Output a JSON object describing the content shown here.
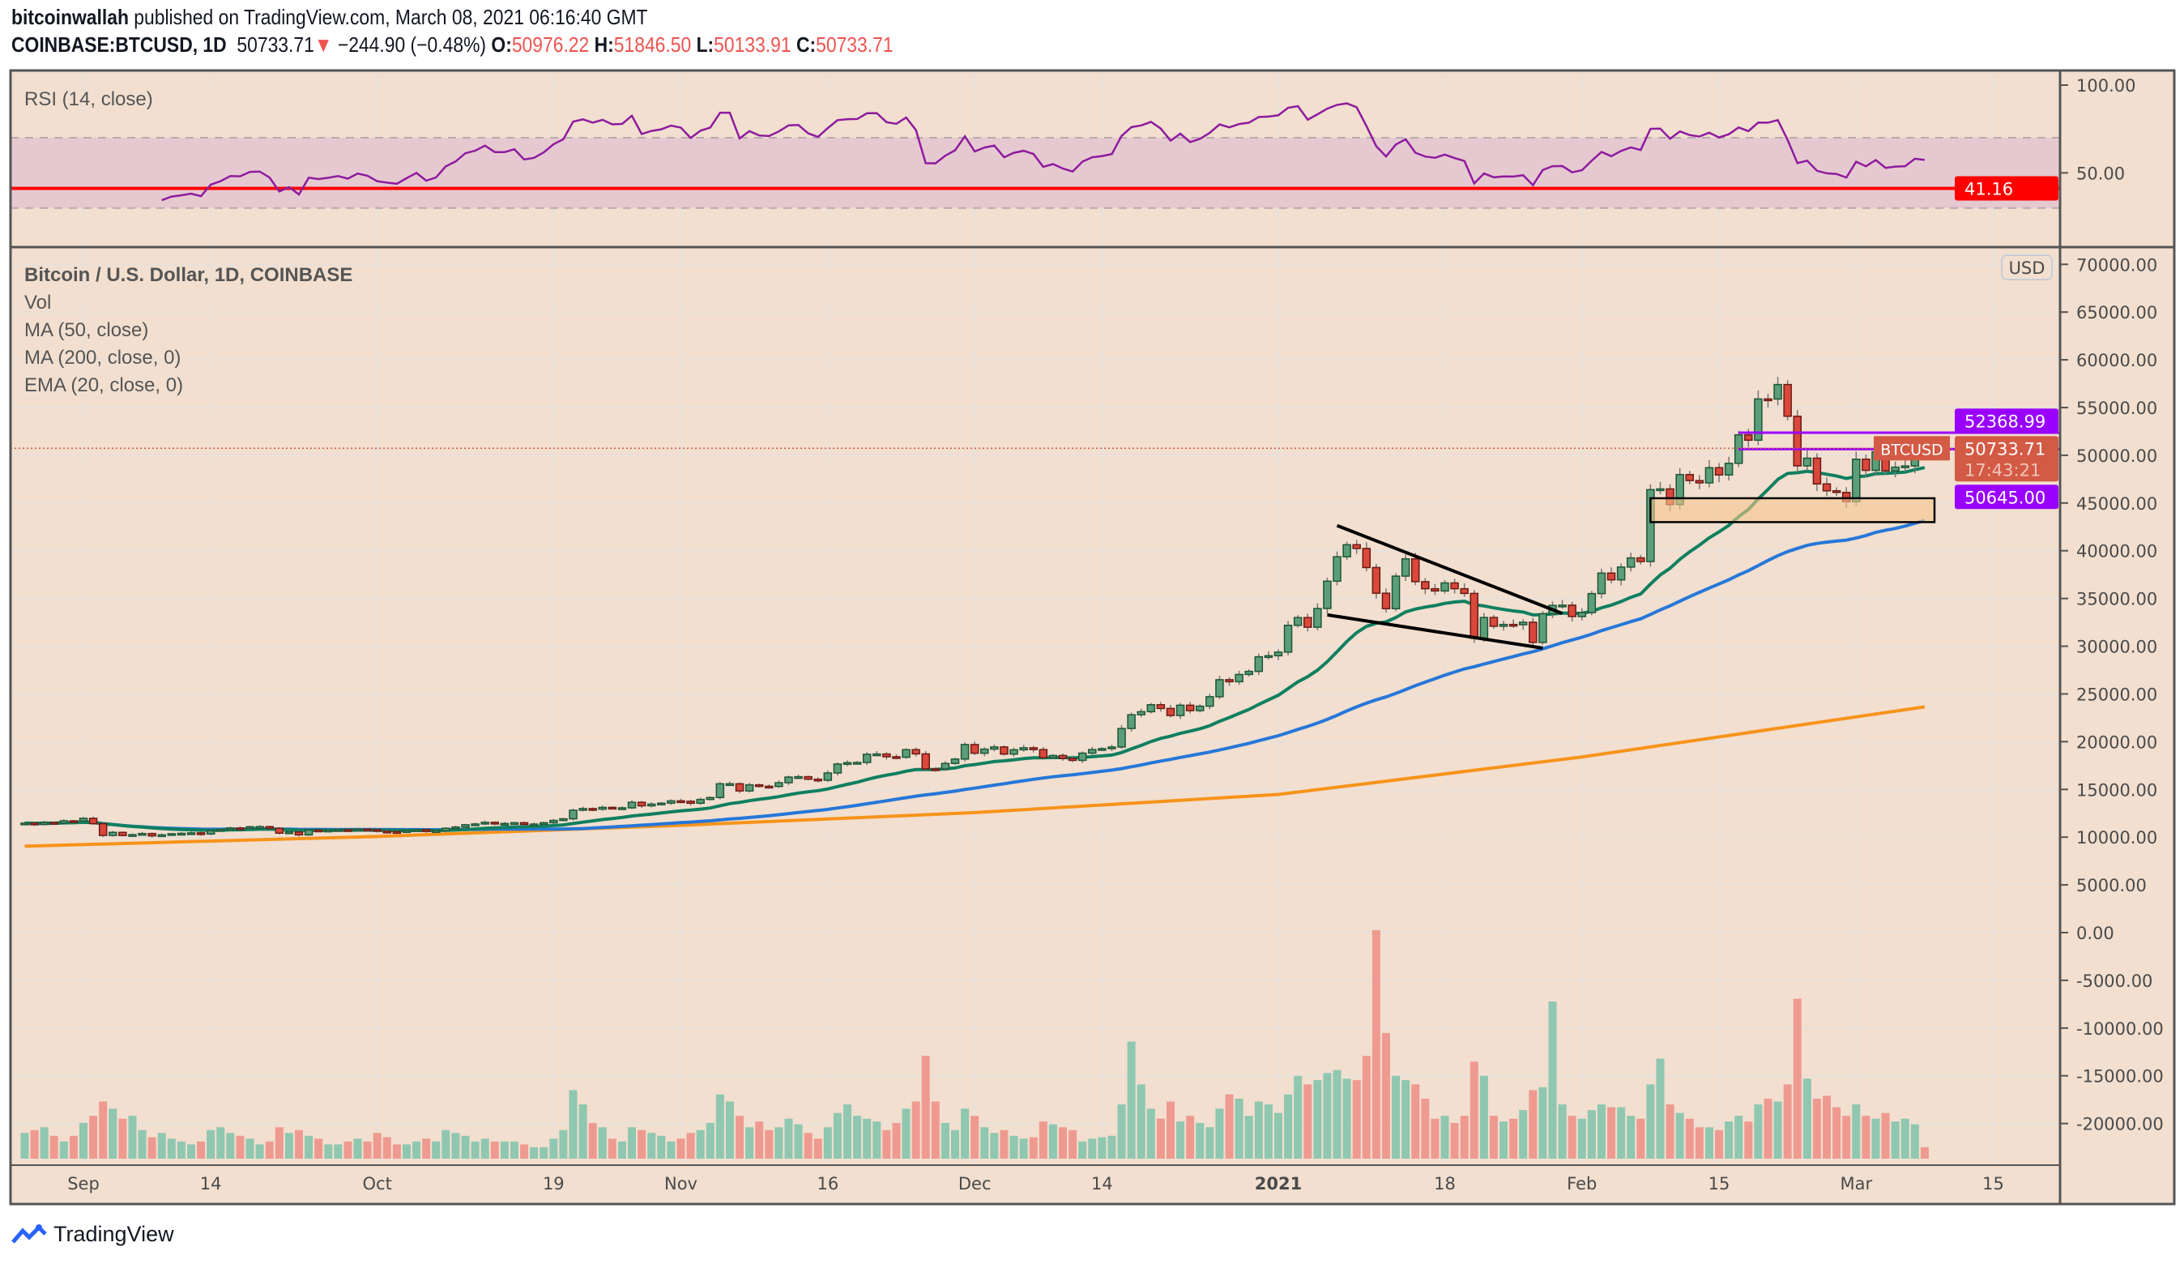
{
  "header": {
    "author": "bitcoinwallah",
    "published_text": "published on TradingView.com, March 08, 2021 06:16:40 GMT",
    "symbol": "COINBASE:BTCUSD, 1D",
    "last": "50733.71",
    "change": "−244.90 (−0.48%)",
    "o_label": "O:",
    "o": "50976.22",
    "h_label": "H:",
    "h": "51846.50",
    "l_label": "L:",
    "l": "50133.91",
    "c_label": "C:",
    "c": "50733.71",
    "direction_icon": "triangle-down-icon"
  },
  "footer": {
    "brand": "TradingView",
    "logo_icon": "tradingview-logo-icon"
  },
  "colors": {
    "background": "#f2dfcf",
    "up": "#5c9e7a",
    "down": "#d9483b",
    "vol_up": "#8fc7b0",
    "vol_down": "#ef9a90",
    "ema20": "#0f7f5f",
    "ma50": "#2677d9",
    "ma200": "#f7931a",
    "rsi": "#8e1b9f",
    "rsi_level": "#ff0000",
    "levels": "#9900ff",
    "last_price": "#d35a45"
  },
  "chart_data": [
    {
      "type": "line",
      "pane": "RSI",
      "title": "RSI (14, close)",
      "ylim": [
        0,
        100
      ],
      "yticks": [
        "100.00",
        "50.00"
      ],
      "band": [
        30,
        70
      ],
      "horizontal_level": {
        "value": 41.16,
        "label": "41.16"
      },
      "source": "computed from price closes"
    },
    {
      "type": "candlestick",
      "pane": "price",
      "title": "Bitcoin / U.S. Dollar, 1D, COINBASE",
      "legend": [
        "Vol",
        "MA (50, close)",
        "MA (200, close, 0)",
        "EMA (20, close, 0)"
      ],
      "currency_badge": "USD",
      "symbol_tag": "BTCUSD",
      "last_price_label": "50733.71",
      "countdown": "17:43:21",
      "yticks": [
        "70000.00",
        "65000.00",
        "60000.00",
        "55000.00",
        "50000.00",
        "45000.00",
        "40000.00",
        "35000.00",
        "30000.00",
        "25000.00",
        "20000.00",
        "15000.00",
        "10000.00",
        "5000.00",
        "0.00",
        "-5000.00",
        "-10000.00",
        "-15000.00",
        "-20000.00"
      ],
      "xticks": [
        {
          "label": "Sep",
          "date": "2020-09-01"
        },
        {
          "label": "14",
          "date": "2020-09-14"
        },
        {
          "label": "Oct",
          "date": "2020-10-01"
        },
        {
          "label": "19",
          "date": "2020-10-19"
        },
        {
          "label": "Nov",
          "date": "2020-11-01"
        },
        {
          "label": "16",
          "date": "2020-11-16"
        },
        {
          "label": "Dec",
          "date": "2020-12-01"
        },
        {
          "label": "14",
          "date": "2020-12-14"
        },
        {
          "label": "2021",
          "date": "2021-01-01",
          "bold": true
        },
        {
          "label": "18",
          "date": "2021-01-18"
        },
        {
          "label": "Feb",
          "date": "2021-02-01"
        },
        {
          "label": "15",
          "date": "2021-02-15"
        },
        {
          "label": "Mar",
          "date": "2021-03-01"
        },
        {
          "label": "15",
          "date": "2021-03-15"
        }
      ],
      "last_candle": {
        "date": "2021-03-08",
        "open": 50976.22,
        "high": 51846.5,
        "low": 50133.91,
        "close": 50733.71
      },
      "candles_fields": [
        "date",
        "close",
        "volume_relative"
      ],
      "candles": [
        [
          "2020-08-26",
          11470,
          18
        ],
        [
          "2020-08-27",
          11330,
          20
        ],
        [
          "2020-08-28",
          11530,
          22
        ],
        [
          "2020-08-29",
          11480,
          16
        ],
        [
          "2020-08-30",
          11710,
          12
        ],
        [
          "2020-08-31",
          11680,
          16
        ],
        [
          "2020-09-01",
          11970,
          25
        ],
        [
          "2020-09-02",
          11410,
          30
        ],
        [
          "2020-09-03",
          10180,
          40
        ],
        [
          "2020-09-04",
          10500,
          35
        ],
        [
          "2020-09-05",
          10170,
          28
        ],
        [
          "2020-09-06",
          10260,
          30
        ],
        [
          "2020-09-07",
          10380,
          20
        ],
        [
          "2020-09-08",
          10130,
          15
        ],
        [
          "2020-09-09",
          10240,
          18
        ],
        [
          "2020-09-10",
          10360,
          14
        ],
        [
          "2020-09-11",
          10400,
          12
        ],
        [
          "2020-09-12",
          10450,
          10
        ],
        [
          "2020-09-13",
          10330,
          12
        ],
        [
          "2020-09-14",
          10680,
          20
        ],
        [
          "2020-09-15",
          10790,
          22
        ],
        [
          "2020-09-16",
          10960,
          18
        ],
        [
          "2020-09-17",
          10950,
          16
        ],
        [
          "2020-09-18",
          11090,
          14
        ],
        [
          "2020-09-19",
          11100,
          10
        ],
        [
          "2020-09-20",
          10920,
          12
        ],
        [
          "2020-09-21",
          10420,
          22
        ],
        [
          "2020-09-22",
          10540,
          18
        ],
        [
          "2020-09-23",
          10240,
          20
        ],
        [
          "2020-09-24",
          10740,
          16
        ],
        [
          "2020-09-25",
          10690,
          14
        ],
        [
          "2020-09-26",
          10730,
          10
        ],
        [
          "2020-09-27",
          10780,
          10
        ],
        [
          "2020-09-28",
          10700,
          12
        ],
        [
          "2020-09-29",
          10840,
          14
        ],
        [
          "2020-09-30",
          10780,
          12
        ],
        [
          "2020-10-01",
          10620,
          18
        ],
        [
          "2020-10-02",
          10580,
          15
        ],
        [
          "2020-10-03",
          10550,
          10
        ],
        [
          "2020-10-04",
          10670,
          10
        ],
        [
          "2020-10-05",
          10790,
          12
        ],
        [
          "2020-10-06",
          10600,
          14
        ],
        [
          "2020-10-07",
          10670,
          12
        ],
        [
          "2020-10-08",
          10930,
          20
        ],
        [
          "2020-10-09",
          11060,
          18
        ],
        [
          "2020-10-10",
          11300,
          16
        ],
        [
          "2020-10-11",
          11380,
          12
        ],
        [
          "2020-10-12",
          11550,
          14
        ],
        [
          "2020-10-13",
          11430,
          12
        ],
        [
          "2020-10-14",
          11430,
          12
        ],
        [
          "2020-10-15",
          11510,
          12
        ],
        [
          "2020-10-16",
          11330,
          10
        ],
        [
          "2020-10-17",
          11370,
          8
        ],
        [
          "2020-10-18",
          11510,
          8
        ],
        [
          "2020-10-19",
          11750,
          14
        ],
        [
          "2020-10-20",
          11920,
          20
        ],
        [
          "2020-10-21",
          12820,
          48
        ],
        [
          "2020-10-22",
          12990,
          38
        ],
        [
          "2020-10-23",
          12930,
          25
        ],
        [
          "2020-10-24",
          13120,
          22
        ],
        [
          "2020-10-25",
          13040,
          14
        ],
        [
          "2020-10-26",
          13070,
          12
        ],
        [
          "2020-10-27",
          13650,
          22
        ],
        [
          "2020-10-28",
          13280,
          20
        ],
        [
          "2020-10-29",
          13460,
          18
        ],
        [
          "2020-10-30",
          13560,
          16
        ],
        [
          "2020-10-31",
          13800,
          12
        ],
        [
          "2020-11-01",
          13760,
          14
        ],
        [
          "2020-11-02",
          13550,
          18
        ],
        [
          "2020-11-03",
          13950,
          20
        ],
        [
          "2020-11-04",
          14150,
          25
        ],
        [
          "2020-11-05",
          15590,
          45
        ],
        [
          "2020-11-06",
          15590,
          40
        ],
        [
          "2020-11-07",
          14840,
          30
        ],
        [
          "2020-11-08",
          15480,
          22
        ],
        [
          "2020-11-09",
          15330,
          26
        ],
        [
          "2020-11-10",
          15310,
          20
        ],
        [
          "2020-11-11",
          15700,
          22
        ],
        [
          "2020-11-12",
          16290,
          28
        ],
        [
          "2020-11-13",
          16330,
          24
        ],
        [
          "2020-11-14",
          16070,
          18
        ],
        [
          "2020-11-15",
          15960,
          14
        ],
        [
          "2020-11-16",
          16720,
          22
        ],
        [
          "2020-11-17",
          17660,
          32
        ],
        [
          "2020-11-18",
          17800,
          38
        ],
        [
          "2020-11-19",
          17820,
          30
        ],
        [
          "2020-11-20",
          18680,
          28
        ],
        [
          "2020-11-21",
          18710,
          26
        ],
        [
          "2020-11-22",
          18420,
          20
        ],
        [
          "2020-11-23",
          18370,
          25
        ],
        [
          "2020-11-24",
          19160,
          35
        ],
        [
          "2020-11-25",
          18720,
          40
        ],
        [
          "2020-11-26",
          17150,
          72
        ],
        [
          "2020-11-27",
          17140,
          40
        ],
        [
          "2020-11-28",
          17720,
          25
        ],
        [
          "2020-11-29",
          18180,
          20
        ],
        [
          "2020-11-30",
          19700,
          35
        ],
        [
          "2020-12-01",
          18790,
          30
        ],
        [
          "2020-12-02",
          19220,
          22
        ],
        [
          "2020-12-03",
          19450,
          18
        ],
        [
          "2020-12-04",
          18700,
          20
        ],
        [
          "2020-12-05",
          19150,
          16
        ],
        [
          "2020-12-06",
          19360,
          14
        ],
        [
          "2020-12-07",
          19170,
          15
        ],
        [
          "2020-12-08",
          18320,
          26
        ],
        [
          "2020-12-09",
          18550,
          24
        ],
        [
          "2020-12-10",
          18250,
          22
        ],
        [
          "2020-12-11",
          18040,
          20
        ],
        [
          "2020-12-12",
          18800,
          12
        ],
        [
          "2020-12-13",
          19170,
          14
        ],
        [
          "2020-12-14",
          19270,
          15
        ],
        [
          "2020-12-15",
          19440,
          16
        ],
        [
          "2020-12-16",
          21380,
          38
        ],
        [
          "2020-12-17",
          22820,
          82
        ],
        [
          "2020-12-18",
          23140,
          52
        ],
        [
          "2020-12-19",
          23870,
          35
        ],
        [
          "2020-12-20",
          23480,
          28
        ],
        [
          "2020-12-21",
          22740,
          40
        ],
        [
          "2020-12-22",
          23820,
          26
        ],
        [
          "2020-12-23",
          23250,
          30
        ],
        [
          "2020-12-24",
          23720,
          25
        ],
        [
          "2020-12-25",
          24710,
          22
        ],
        [
          "2020-12-26",
          26490,
          35
        ],
        [
          "2020-12-27",
          26280,
          45
        ],
        [
          "2020-12-28",
          27040,
          42
        ],
        [
          "2020-12-29",
          27360,
          30
        ],
        [
          "2020-12-30",
          28890,
          40
        ],
        [
          "2020-12-31",
          29000,
          38
        ],
        [
          "2021-01-01",
          29380,
          32
        ],
        [
          "2021-01-02",
          32190,
          45
        ],
        [
          "2021-01-03",
          33000,
          58
        ],
        [
          "2021-01-04",
          31990,
          52
        ],
        [
          "2021-01-05",
          33950,
          55
        ],
        [
          "2021-01-06",
          36810,
          60
        ],
        [
          "2021-01-07",
          39370,
          62
        ],
        [
          "2021-01-08",
          40630,
          56
        ],
        [
          "2021-01-09",
          40240,
          55
        ],
        [
          "2021-01-10",
          38240,
          72
        ],
        [
          "2021-01-11",
          35550,
          160
        ],
        [
          "2021-01-12",
          33930,
          88
        ],
        [
          "2021-01-13",
          37340,
          58
        ],
        [
          "2021-01-14",
          39150,
          55
        ],
        [
          "2021-01-15",
          36760,
          52
        ],
        [
          "2021-01-16",
          36020,
          42
        ],
        [
          "2021-01-17",
          35790,
          28
        ],
        [
          "2021-01-18",
          36630,
          30
        ],
        [
          "2021-01-19",
          36020,
          25
        ],
        [
          "2021-01-20",
          35530,
          30
        ],
        [
          "2021-01-21",
          30830,
          68
        ],
        [
          "2021-01-22",
          33010,
          58
        ],
        [
          "2021-01-23",
          32090,
          30
        ],
        [
          "2021-01-24",
          32280,
          26
        ],
        [
          "2021-01-25",
          32250,
          28
        ],
        [
          "2021-01-26",
          32510,
          34
        ],
        [
          "2021-01-27",
          30400,
          48
        ],
        [
          "2021-01-28",
          33400,
          50
        ],
        [
          "2021-01-29",
          34270,
          110
        ],
        [
          "2021-01-30",
          34300,
          38
        ],
        [
          "2021-01-31",
          33110,
          30
        ],
        [
          "2021-02-01",
          33520,
          28
        ],
        [
          "2021-02-02",
          35510,
          34
        ],
        [
          "2021-02-03",
          37660,
          38
        ],
        [
          "2021-02-04",
          36950,
          36
        ],
        [
          "2021-02-05",
          38290,
          36
        ],
        [
          "2021-02-06",
          39250,
          30
        ],
        [
          "2021-02-07",
          38870,
          28
        ],
        [
          "2021-02-08",
          46400,
          52
        ],
        [
          "2021-02-09",
          46480,
          70
        ],
        [
          "2021-02-10",
          44840,
          38
        ],
        [
          "2021-02-11",
          47980,
          32
        ],
        [
          "2021-02-12",
          47350,
          28
        ],
        [
          "2021-02-13",
          47110,
          22
        ],
        [
          "2021-02-14",
          48700,
          22
        ],
        [
          "2021-02-15",
          47940,
          20
        ],
        [
          "2021-02-16",
          49160,
          26
        ],
        [
          "2021-02-17",
          52140,
          30
        ],
        [
          "2021-02-18",
          51580,
          26
        ],
        [
          "2021-02-19",
          55900,
          38
        ],
        [
          "2021-02-20",
          55890,
          42
        ],
        [
          "2021-02-21",
          57410,
          40
        ],
        [
          "2021-02-22",
          54090,
          52
        ],
        [
          "2021-02-23",
          48890,
          112
        ],
        [
          "2021-02-24",
          49700,
          56
        ],
        [
          "2021-02-25",
          47000,
          42
        ],
        [
          "2021-02-26",
          46280,
          44
        ],
        [
          "2021-02-27",
          46110,
          36
        ],
        [
          "2021-02-28",
          45140,
          30
        ],
        [
          "2021-03-01",
          49590,
          38
        ],
        [
          "2021-03-02",
          48420,
          30
        ],
        [
          "2021-03-03",
          50370,
          28
        ],
        [
          "2021-03-04",
          48370,
          32
        ],
        [
          "2021-03-05",
          48760,
          26
        ],
        [
          "2021-03-06",
          48880,
          28
        ],
        [
          "2021-03-07",
          50980,
          24
        ],
        [
          "2021-03-08",
          50733.71,
          8
        ]
      ],
      "ma200": [
        [
          "2020-08-26",
          9050
        ],
        [
          "2020-10-01",
          10070
        ],
        [
          "2020-11-01",
          11240
        ],
        [
          "2020-12-01",
          12570
        ],
        [
          "2021-01-01",
          14470
        ],
        [
          "2021-02-01",
          18400
        ],
        [
          "2021-03-08",
          23650
        ]
      ],
      "drawings": {
        "triangle_upper": [
          [
            "2021-01-07",
            42640
          ],
          [
            "2021-01-30",
            33430
          ]
        ],
        "triangle_lower": [
          [
            "2021-01-06",
            33280
          ],
          [
            "2021-01-28",
            29800
          ]
        ],
        "support_box": {
          "from": "2021-02-08",
          "to": "2021-03-09",
          "top": 45500,
          "bottom": 43000
        },
        "level_high": {
          "value": 52368.99,
          "label": "52368.99",
          "from": "2021-02-17"
        },
        "level_low": {
          "value": 50645.0,
          "label": "50645.00",
          "from": "2021-02-17"
        }
      }
    }
  ]
}
